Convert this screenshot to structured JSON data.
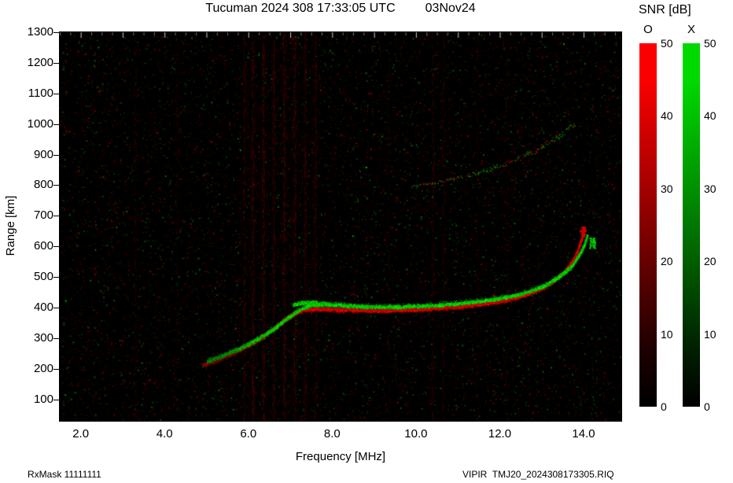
{
  "header": {
    "title": "Tucuman 2024 308 17:33:05 UTC",
    "date": "03Nov24"
  },
  "footer": {
    "left": "RxMask 11111111",
    "right": "VIPIR  TMJ20_2024308173305.RIQ"
  },
  "colorbar": {
    "title": "SNR [dB]",
    "min": 0,
    "max": 50,
    "ticks": [
      50,
      40,
      30,
      20,
      10,
      0
    ],
    "bars": [
      {
        "label": "O",
        "top": "#fb0000",
        "mid": "#8c0000",
        "low": "#1e0000"
      },
      {
        "label": "X",
        "top": "#00d900",
        "mid": "#007d00",
        "low": "#002000"
      }
    ]
  },
  "chart_data": {
    "type": "heatmap",
    "title": "Tucuman 2024 308 17:33:05 UTC 03Nov24",
    "xlabel": "Frequency [MHz]",
    "ylabel": "Range [km]",
    "xlim": [
      1.5,
      14.9
    ],
    "ylim": [
      30,
      1300
    ],
    "xticks": [
      2.0,
      4.0,
      6.0,
      8.0,
      10.0,
      12.0,
      14.0
    ],
    "xtick_labels": [
      "2.0",
      "4.0",
      "6.0",
      "8.0",
      "10.0",
      "12.0",
      "14.0"
    ],
    "yticks": [
      100,
      200,
      300,
      400,
      500,
      600,
      700,
      800,
      900,
      1000,
      1100,
      1200,
      1300
    ],
    "series": [
      {
        "name": "F-trace-O",
        "polarization": "O",
        "color": "#ff1a00",
        "points": [
          [
            4.9,
            215
          ],
          [
            5.2,
            230
          ],
          [
            5.55,
            250
          ],
          [
            5.95,
            276
          ],
          [
            6.35,
            308
          ],
          [
            6.75,
            350
          ],
          [
            7.05,
            380
          ],
          [
            7.3,
            394
          ],
          [
            7.6,
            398
          ],
          [
            8.1,
            396
          ],
          [
            8.7,
            393
          ],
          [
            9.3,
            392
          ],
          [
            9.9,
            395
          ],
          [
            10.5,
            400
          ],
          [
            11.1,
            406
          ],
          [
            11.7,
            416
          ],
          [
            12.2,
            428
          ],
          [
            12.6,
            443
          ],
          [
            12.95,
            462
          ],
          [
            13.25,
            487
          ],
          [
            13.5,
            514
          ],
          [
            13.7,
            548
          ],
          [
            13.85,
            588
          ],
          [
            13.95,
            630
          ],
          [
            13.99,
            650
          ]
        ]
      },
      {
        "name": "F-trace-X",
        "polarization": "X",
        "color": "#00dd00",
        "points": [
          [
            5.0,
            226
          ],
          [
            5.35,
            243
          ],
          [
            5.75,
            266
          ],
          [
            6.15,
            294
          ],
          [
            6.55,
            328
          ],
          [
            6.95,
            370
          ],
          [
            7.25,
            398
          ],
          [
            7.5,
            411
          ],
          [
            7.85,
            412
          ],
          [
            8.35,
            408
          ],
          [
            8.95,
            404
          ],
          [
            9.55,
            404
          ],
          [
            10.15,
            407
          ],
          [
            10.75,
            412
          ],
          [
            11.35,
            420
          ],
          [
            11.9,
            430
          ],
          [
            12.45,
            444
          ],
          [
            12.85,
            461
          ],
          [
            13.15,
            480
          ],
          [
            13.45,
            507
          ],
          [
            13.7,
            537
          ],
          [
            13.88,
            572
          ],
          [
            14.0,
            605
          ],
          [
            14.08,
            638
          ]
        ]
      },
      {
        "name": "X-crest",
        "polarization": "X",
        "color": "#00ee00",
        "points": [
          [
            7.05,
            410
          ],
          [
            7.25,
            417
          ],
          [
            7.5,
            419
          ],
          [
            7.75,
            416
          ],
          [
            7.95,
            411
          ]
        ]
      },
      {
        "name": "second-hop",
        "color": "mixed",
        "points": [
          [
            9.9,
            798
          ],
          [
            10.35,
            808
          ],
          [
            10.8,
            820
          ],
          [
            11.25,
            834
          ],
          [
            11.7,
            852
          ],
          [
            12.1,
            870
          ],
          [
            12.5,
            892
          ],
          [
            12.85,
            915
          ],
          [
            13.15,
            940
          ],
          [
            13.45,
            966
          ],
          [
            13.68,
            990
          ],
          [
            13.8,
            1005
          ]
        ]
      }
    ],
    "blobs": [
      {
        "f": 13.97,
        "r": 650,
        "color": "red"
      },
      {
        "f": 14.2,
        "r": 612,
        "color": "green"
      }
    ],
    "rfi": [
      {
        "f": 3.3,
        "s": 0.4
      },
      {
        "f": 4.3,
        "s": 0.3
      },
      {
        "f": 5.9,
        "s": 0.7
      },
      {
        "f": 6.1,
        "s": 0.8
      },
      {
        "f": 6.35,
        "s": 0.9
      },
      {
        "f": 6.6,
        "s": 0.8
      },
      {
        "f": 6.85,
        "s": 0.9
      },
      {
        "f": 7.1,
        "s": 0.8
      },
      {
        "f": 7.35,
        "s": 0.7
      },
      {
        "f": 7.6,
        "s": 0.6
      },
      {
        "f": 9.35,
        "s": 0.35
      },
      {
        "f": 10.4,
        "s": 0.5
      },
      {
        "f": 10.65,
        "s": 0.45
      },
      {
        "f": 11.45,
        "s": 0.3
      },
      {
        "f": 12.15,
        "s": 0.3
      }
    ],
    "wash": {
      "fmin": 5.85,
      "fmax": 7.7,
      "count": 1200
    },
    "noise": {
      "count": 14000,
      "green_fraction": 0.33
    }
  }
}
